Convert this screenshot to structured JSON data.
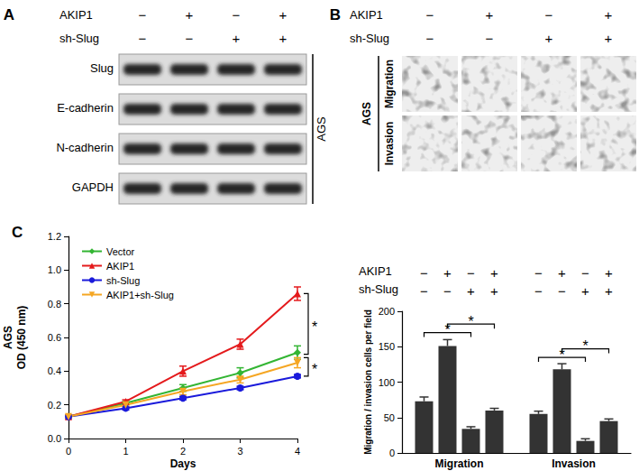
{
  "panels": {
    "A": {
      "label": "A",
      "condition_rows": [
        {
          "label": "AKIP1",
          "signs": [
            "−",
            "+",
            "−",
            "+"
          ]
        },
        {
          "label": "sh-Slug",
          "signs": [
            "−",
            "−",
            "+",
            "+"
          ]
        }
      ],
      "blot_rows": [
        "Slug",
        "E-cadherin",
        "N-cadherin",
        "GAPDH"
      ],
      "cell_line": "AGS"
    },
    "B": {
      "label": "B",
      "condition_rows": [
        {
          "label": "AKIP1",
          "signs": [
            "−",
            "+",
            "−",
            "+"
          ]
        },
        {
          "label": "sh-Slug",
          "signs": [
            "−",
            "−",
            "+",
            "+"
          ]
        }
      ],
      "image_rows": [
        "Migration",
        "Invasion"
      ],
      "cell_line": "AGS"
    }
  },
  "chart_data": [
    {
      "type": "line",
      "title": "C",
      "x": [
        0,
        1,
        2,
        3,
        4
      ],
      "xlim": [
        0,
        4
      ],
      "xticks": [
        0,
        1,
        2,
        3,
        4
      ],
      "x_label": "Days",
      "y_label": "AGS\nOD (450 nm)",
      "ylim": [
        0,
        1.2
      ],
      "yticks": [
        {
          "value": 0,
          "label": "0.0"
        },
        {
          "value": 0.2,
          "label": "0.2"
        },
        {
          "value": 0.4,
          "label": "0.4"
        },
        {
          "value": 0.6,
          "label": "0.6"
        },
        {
          "value": 0.8,
          "label": "0.8"
        },
        {
          "value": 1.0,
          "label": "1.0"
        },
        {
          "value": 1.2,
          "label": "1.2"
        }
      ],
      "grid": false,
      "legend": "upper left",
      "series": [
        {
          "name": "Vector",
          "color": "#33b533",
          "marker": "diamond",
          "values": [
            0.13,
            0.21,
            0.3,
            0.39,
            0.51
          ],
          "errors": [
            0.01,
            0.01,
            0.02,
            0.03,
            0.04
          ]
        },
        {
          "name": "AKIP1",
          "color": "#e41a1c",
          "marker": "triangle",
          "values": [
            0.13,
            0.22,
            0.4,
            0.56,
            0.86
          ],
          "errors": [
            0.01,
            0.01,
            0.03,
            0.03,
            0.04
          ]
        },
        {
          "name": "sh-Slug",
          "color": "#1a1adb",
          "marker": "circle",
          "values": [
            0.13,
            0.18,
            0.24,
            0.3,
            0.37
          ],
          "errors": [
            0.01,
            0.01,
            0.01,
            0.01,
            0.01
          ]
        },
        {
          "name": "AKIP1+sh-Slug",
          "color": "#f5a623",
          "marker": "triangle_down",
          "values": [
            0.13,
            0.2,
            0.28,
            0.35,
            0.45
          ],
          "errors": [
            0.01,
            0.01,
            0.02,
            0.02,
            0.03
          ]
        }
      ],
      "brackets": [
        {
          "x": 4,
          "from": 0.86,
          "to": 0.5,
          "label": "*"
        },
        {
          "x": 4,
          "from": 0.48,
          "to": 0.37,
          "label": "*"
        }
      ]
    },
    {
      "type": "bar",
      "color": "#333333",
      "categories": [
        "Migration",
        "Invasion"
      ],
      "condition_rows": [
        {
          "label": "AKIP1",
          "signs": [
            "−",
            "+",
            "−",
            "+",
            "−",
            "+",
            "−",
            "+"
          ]
        },
        {
          "label": "sh-Slug",
          "signs": [
            "−",
            "−",
            "+",
            "+",
            "−",
            "−",
            "+",
            "+"
          ]
        }
      ],
      "series": [
        {
          "values": [
            73,
            55
          ],
          "errors": [
            6,
            4
          ]
        },
        {
          "values": [
            151,
            118
          ],
          "errors": [
            9,
            8
          ]
        },
        {
          "values": [
            34,
            17
          ],
          "errors": [
            3,
            3
          ]
        },
        {
          "values": [
            60,
            45
          ],
          "errors": [
            3,
            3
          ]
        }
      ],
      "y_label": "Migration / invasion cells per field",
      "ylim": [
        0,
        200
      ],
      "yticks": [
        0,
        50,
        100,
        150,
        200
      ],
      "grid": false,
      "brackets": [
        {
          "category": "Migration",
          "bars": [
            0,
            2
          ],
          "y": 170,
          "label": "*"
        },
        {
          "category": "Migration",
          "bars": [
            1,
            3
          ],
          "y": 182,
          "label": "*"
        },
        {
          "category": "Invasion",
          "bars": [
            0,
            2
          ],
          "y": 135,
          "label": "*"
        },
        {
          "category": "Invasion",
          "bars": [
            1,
            3
          ],
          "y": 147,
          "label": "*"
        }
      ]
    }
  ]
}
